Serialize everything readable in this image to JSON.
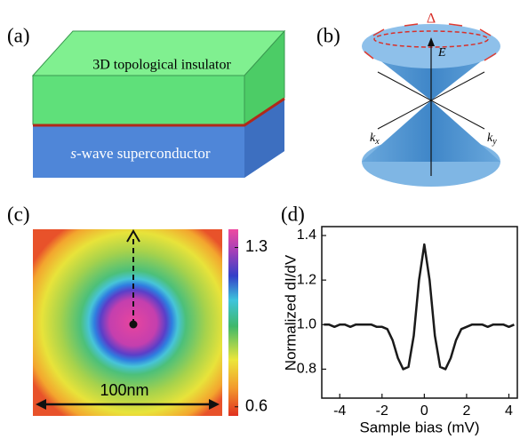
{
  "panels": {
    "a": {
      "label": "(a)",
      "top_layer": "3D topological insulator",
      "bottom_layer_italic": "s",
      "bottom_layer_rest": "-wave superconductor"
    },
    "b": {
      "label": "(b)",
      "energy": "E",
      "gap": "Δ",
      "kx": "k",
      "kx_sub": "x",
      "ky": "k",
      "ky_sub": "y"
    },
    "c": {
      "label": "(c)",
      "scale_bar": "100nm",
      "colorbar": {
        "lim": [
          0.56,
          1.38
        ],
        "ticks": [
          0.6,
          1.3
        ]
      }
    },
    "d": {
      "label": "(d)"
    }
  },
  "chart_data": {
    "type": "line",
    "xlabel": "Sample bias (mV)",
    "ylabel": "Normalized dI/dV",
    "color": "#1a1a1a",
    "x": [
      -4.75,
      -4.5,
      -4.25,
      -4,
      -3.75,
      -3.5,
      -3.25,
      -3,
      -2.75,
      -2.5,
      -2.25,
      -2,
      -1.75,
      -1.5,
      -1.25,
      -1,
      -0.75,
      -0.5,
      -0.25,
      0,
      0.25,
      0.5,
      0.75,
      1,
      1.25,
      1.5,
      1.75,
      2,
      2.25,
      2.5,
      2.75,
      3,
      3.25,
      3.5,
      3.75,
      4,
      4.25
    ],
    "values": [
      1.0,
      1.0,
      0.99,
      1.0,
      1.0,
      0.99,
      1.0,
      1.0,
      1.0,
      1.0,
      0.99,
      0.99,
      0.98,
      0.93,
      0.85,
      0.8,
      0.81,
      0.95,
      1.2,
      1.36,
      1.2,
      0.95,
      0.81,
      0.8,
      0.85,
      0.93,
      0.98,
      0.99,
      1.0,
      1.0,
      1.0,
      0.99,
      1.0,
      1.0,
      1.0,
      0.99,
      1.0
    ],
    "xlim": [
      -4.85,
      4.4
    ],
    "ylim": [
      0.67,
      1.44
    ],
    "xticks": [
      -4,
      -2,
      0,
      2,
      4
    ],
    "yticks": [
      0.8,
      {
        "value": 1.0,
        "label": "1.0"
      },
      1.2,
      1.4
    ]
  }
}
